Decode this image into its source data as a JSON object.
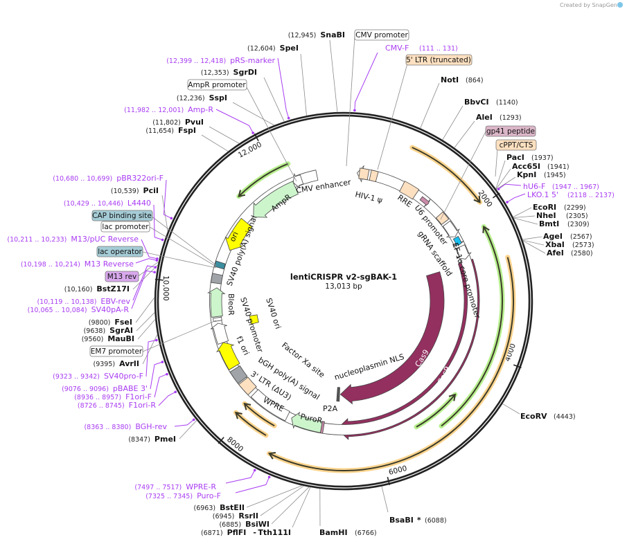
{
  "watermark": "Created by SnapGene",
  "plasmid": {
    "name": "lentiCRISPR v2-sgBAK-1",
    "size": "13,013 bp"
  },
  "ticks": {
    "t2000": "2000",
    "t4000": "4000",
    "t6000": "6000",
    "t8000": "8000",
    "t10000": "10,000",
    "t12000": "12,000"
  },
  "enzymes": {
    "snabi": {
      "name": "SnaBI",
      "pos": "(12,945)"
    },
    "spei": {
      "name": "SpeI",
      "pos": "(12,604)"
    },
    "sgrdi": {
      "name": "SgrDI",
      "pos": "(12,353)"
    },
    "sspi": {
      "name": "SspI",
      "pos": "(12,236)"
    },
    "pvui": {
      "name": "PvuI",
      "pos": "(11,802)"
    },
    "fspi": {
      "name": "FspI",
      "pos": "(11,654)"
    },
    "pcii": {
      "name": "PciI",
      "pos": "(10,539)"
    },
    "bstz17i": {
      "name": "BstZ17I",
      "pos": "(10,160)"
    },
    "fsei": {
      "name": "FseI",
      "pos": "(9800)"
    },
    "sgrai": {
      "name": "SgrAI",
      "pos": "(9638)"
    },
    "maubi": {
      "name": "MauBI",
      "pos": "(9560)"
    },
    "avrii": {
      "name": "AvrII",
      "pos": "(9395)"
    },
    "pmei": {
      "name": "PmeI",
      "pos": "(8347)"
    },
    "bsteii": {
      "name": "BstEII",
      "pos": "(6963)"
    },
    "rsrii": {
      "name": "RsrII",
      "pos": "(6945)"
    },
    "bsiwi": {
      "name": "BsiWI",
      "pos": "(6885)"
    },
    "pflfi": {
      "name": "PflFI",
      "sep": "-",
      "name2": "Tth111I",
      "pos": "(6871)"
    },
    "bamhi": {
      "name": "BamHI",
      "pos": "(6766)"
    },
    "bsabi": {
      "name": "BsaBI",
      "mark": "*",
      "pos": "(6088)"
    },
    "ecorv": {
      "name": "EcoRV",
      "pos": "(4443)"
    },
    "noti": {
      "name": "NotI",
      "pos": "(864)"
    },
    "bbvci": {
      "name": "BbvCI",
      "pos": "(1140)"
    },
    "alei": {
      "name": "AleI",
      "pos": "(1293)"
    },
    "paci": {
      "name": "PacI",
      "pos": "(1937)"
    },
    "acc65i": {
      "name": "Acc65I",
      "pos": "(1941)"
    },
    "kpni": {
      "name": "KpnI",
      "pos": "(1945)"
    },
    "ecori": {
      "name": "EcoRI",
      "pos": "(2299)"
    },
    "nhei": {
      "name": "NheI",
      "pos": "(2305)"
    },
    "bmti": {
      "name": "BmtI",
      "pos": "(2309)"
    },
    "agei": {
      "name": "AgeI",
      "pos": "(2567)"
    },
    "xbai": {
      "name": "XbaI",
      "pos": "(2573)"
    },
    "afei": {
      "name": "AfeI",
      "pos": "(2580)"
    }
  },
  "primers": {
    "cmvf": {
      "name": "CMV-F",
      "range": "(111 .. 131)"
    },
    "prs": {
      "name": "pRS-marker",
      "range": "(12,399 .. 12,418)"
    },
    "ampr": {
      "name": "Amp-R",
      "range": "(11,982 .. 12,001)"
    },
    "pbr322": {
      "name": "pBR322ori-F",
      "range": "(10,680 .. 10,699)"
    },
    "l4440": {
      "name": "L4440",
      "range": "(10,429 .. 10,446)"
    },
    "m13puc": {
      "name": "M13/pUC Reverse",
      "range": "(10,211 .. 10,233)"
    },
    "m13r": {
      "name": "M13 Reverse",
      "range": "(10,198 .. 10,214)"
    },
    "ebv": {
      "name": "EBV-rev",
      "range": "(10,119 .. 10,138)"
    },
    "sv40pa": {
      "name": "SV40pA-R",
      "range": "(10,065 .. 10,084)"
    },
    "sv40pro": {
      "name": "SV40pro-F",
      "range": "(9323 .. 9342)"
    },
    "pbabe": {
      "name": "pBABE 3'",
      "range": "(9076 .. 9096)"
    },
    "f1orif": {
      "name": "F1ori-F",
      "range": "(8936 .. 8957)"
    },
    "f1orir": {
      "name": "F1ori-R",
      "range": "(8726 .. 8745)"
    },
    "bghrev": {
      "name": "BGH-rev",
      "range": "(8363 .. 8380)"
    },
    "wprer": {
      "name": "WPRE-R",
      "range": "(7497 .. 7517)"
    },
    "purof": {
      "name": "Puro-F",
      "range": "(7325 .. 7345)"
    },
    "hu6f": {
      "name": "hU6-F",
      "range": "(1947 .. 1967)"
    },
    "lko": {
      "name": "LKO.1 5'",
      "range": "(2118 .. 2137)"
    }
  },
  "boxes": {
    "cmv_promoter": "CMV promoter",
    "ltr5": "5' LTR (truncated)",
    "ampr_promoter": "AmpR promoter",
    "gp41": "gp41 peptide",
    "cppt": "cPPT/CTS",
    "cap": "CAP binding site",
    "lac_promoter": "lac promoter",
    "lac_operator": "lac operator",
    "m13rev": "M13 rev",
    "em7": "EM7 promoter"
  },
  "features": {
    "cmv_enhancer": "CMV enhancer",
    "hiv_psi": "HIV-1 ψ",
    "ampr": "AmpR",
    "ori": "ori",
    "sv40pa": "SV40 poly(A) signal",
    "bleor": "BleoR",
    "sv40_promoter": "SV40 promoter",
    "f1ori": "f1 ori",
    "sv40ori": "SV40 ori",
    "factorxa": "Factor Xa site",
    "bgh": "bGH poly(A) signal",
    "ltr3": "3' LTR (ΔU3)",
    "wpre": "WPRE",
    "puror": "PuroR",
    "p2a": "P2A",
    "nls": "nucleoplasmin NLS",
    "cas9_inner": "Cas9",
    "cas9_outer": "Cas9",
    "rre": "RRE",
    "u6": "U6 promoter",
    "grna": "gRNA scaffold",
    "ef1a": "EF-1α core promoter"
  },
  "colors": {
    "primer": "#a83cf2",
    "cas9": "#93305f",
    "misc": "#fde0c0",
    "marker": "#cdf5cc",
    "ori": "#ffff00",
    "orange_glow": "#fcd48e",
    "green_glow": "#b7ef8e"
  }
}
